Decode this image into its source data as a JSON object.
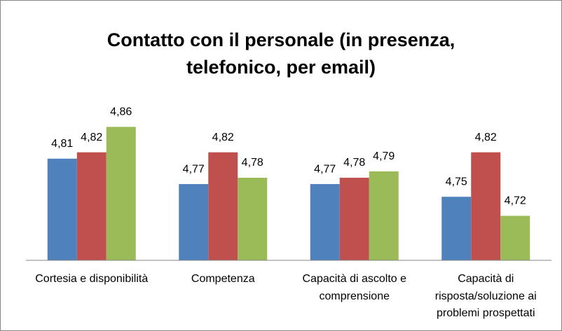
{
  "chart_data": {
    "type": "bar",
    "title": "Contatto con il personale (in presenza, telefonico, per email)",
    "categories": [
      "Cortesia e disponibilità",
      "Competenza",
      "Capacità di ascolto e comprensione",
      "Capacità di risposta/soluzione ai problemi prospettati"
    ],
    "series": [
      {
        "color": "#4f81bd",
        "values": [
          4.81,
          4.77,
          4.77,
          4.75
        ],
        "value_labels": [
          "4,81",
          "4,77",
          "4,77",
          "4,75"
        ]
      },
      {
        "color": "#c0504d",
        "values": [
          4.82,
          4.82,
          4.78,
          4.82
        ],
        "value_labels": [
          "4,82",
          "4,82",
          "4,78",
          "4,82"
        ]
      },
      {
        "color": "#9bbb59",
        "values": [
          4.86,
          4.78,
          4.79,
          4.72
        ],
        "value_labels": [
          "4,86",
          "4,78",
          "4,79",
          "4,72"
        ]
      }
    ],
    "ylim": [
      4.65,
      4.9
    ]
  }
}
